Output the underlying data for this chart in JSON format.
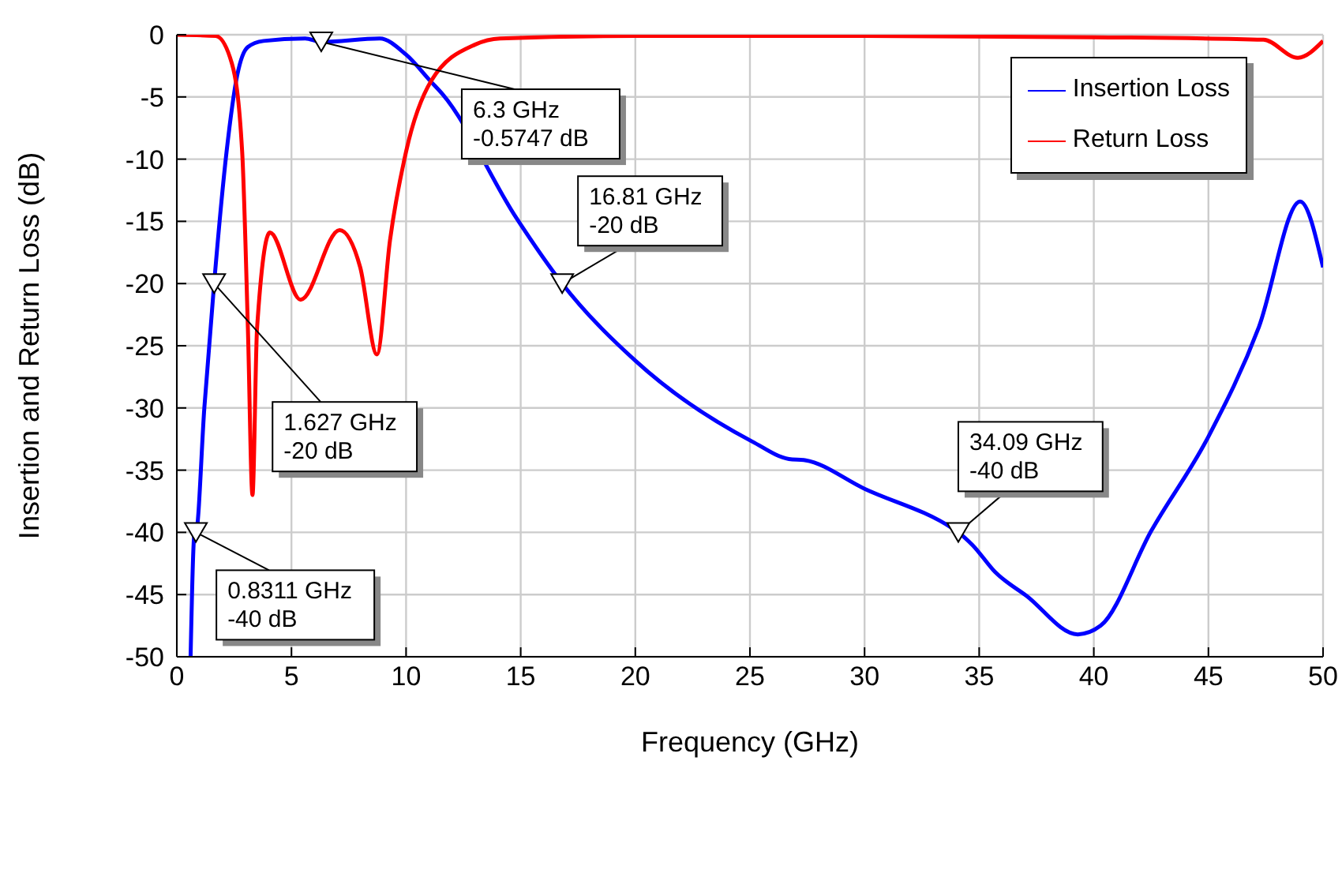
{
  "chart_data": {
    "type": "line",
    "xlabel": "Frequency (GHz)",
    "ylabel": "Insertion and Return Loss (dB)",
    "xlim": [
      0,
      50
    ],
    "xticks": [
      0,
      5,
      10,
      15,
      20,
      25,
      30,
      35,
      40,
      45,
      50
    ],
    "ylim": [
      -50,
      0
    ],
    "yticks": [
      -50,
      -45,
      -40,
      -35,
      -30,
      -25,
      -20,
      -15,
      -10,
      -5,
      0
    ],
    "grid": true,
    "legend": "top right",
    "marker": "none",
    "line_style": "solid",
    "series": [
      {
        "name": "Insertion Loss",
        "color": "#0000ff",
        "x": [
          0.6,
          0.78,
          0.8311,
          1.2,
          1.627,
          2.17,
          2.63,
          3.09,
          3.78,
          5.6,
          6.3,
          8.85,
          10,
          11.1,
          11.6,
          14.8,
          16.81,
          20,
          25.1,
          26.7,
          27.4,
          30,
          33.85,
          34.09,
          34.7,
          35.7,
          37.06,
          39.3,
          40.3,
          42.5,
          45,
          47.2,
          49,
          50
        ],
        "values": [
          -50,
          -40,
          -40,
          -30,
          -20,
          -9.4,
          -3.3,
          -1,
          -0.5,
          -0.3,
          -0.5747,
          -0.3,
          -1.6,
          -3.8,
          -4.8,
          -14.7,
          -20,
          -26.2,
          -32.7,
          -34.1,
          -34.2,
          -36.5,
          -39.7,
          -40,
          -41,
          -43.2,
          -45.1,
          -48.2,
          -47.5,
          -39.9,
          -32.3,
          -23.5,
          -13.4,
          -18.7
        ]
      },
      {
        "name": "Return Loss",
        "color": "#ff0000",
        "x": [
          0,
          1.7,
          2.4,
          2.85,
          3.1,
          3.3,
          3.5,
          4.06,
          5.4,
          7.1,
          8,
          8.73,
          9.3,
          10,
          11.1,
          13,
          14.1,
          20,
          30,
          40,
          47.4,
          48.9,
          50
        ],
        "values": [
          0,
          -0.1,
          -2.3,
          -9.4,
          -23.6,
          -37,
          -23.6,
          -15.9,
          -21.3,
          -15.7,
          -18.7,
          -25.7,
          -16.5,
          -9.4,
          -3.7,
          -0.8,
          -0.3,
          -0.1,
          -0.1,
          -0.2,
          -0.4,
          -1.85,
          -0.5
        ]
      }
    ],
    "annotations": [
      {
        "text": "6.3 GHz\n-0.5747 dB",
        "x": 6.3,
        "y": -0.5747
      },
      {
        "text": "16.81 GHz\n-20 dB",
        "x": 16.81,
        "y": -20
      },
      {
        "text": "1.627 GHz\n-20 dB",
        "x": 1.627,
        "y": -20
      },
      {
        "text": "0.8311 GHz\n-40 dB",
        "x": 0.8311,
        "y": -40
      },
      {
        "text": "34.09 GHz\n-40 dB",
        "x": 34.09,
        "y": -40
      }
    ]
  }
}
